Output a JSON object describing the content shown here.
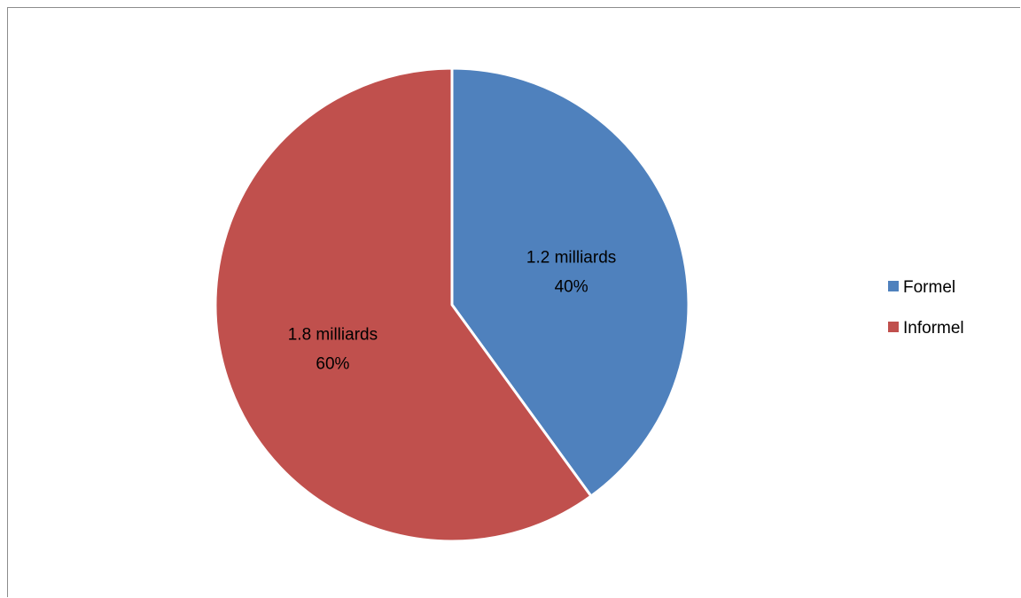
{
  "chart_data": {
    "type": "pie",
    "title": "",
    "categories": [
      "Formel",
      "Informel"
    ],
    "values": [
      1.2,
      1.8
    ],
    "value_labels": [
      "1.2 milliards",
      "1.8 milliards"
    ],
    "percent_labels": [
      "40%",
      "60%"
    ],
    "colors": [
      "#4f81bd",
      "#c0504d"
    ],
    "start_angle_deg": 0,
    "direction": "clockwise",
    "legend_position": "right",
    "legend": [
      {
        "label": "Formel",
        "color": "#4f81bd"
      },
      {
        "label": "Informel",
        "color": "#c0504d"
      }
    ]
  }
}
